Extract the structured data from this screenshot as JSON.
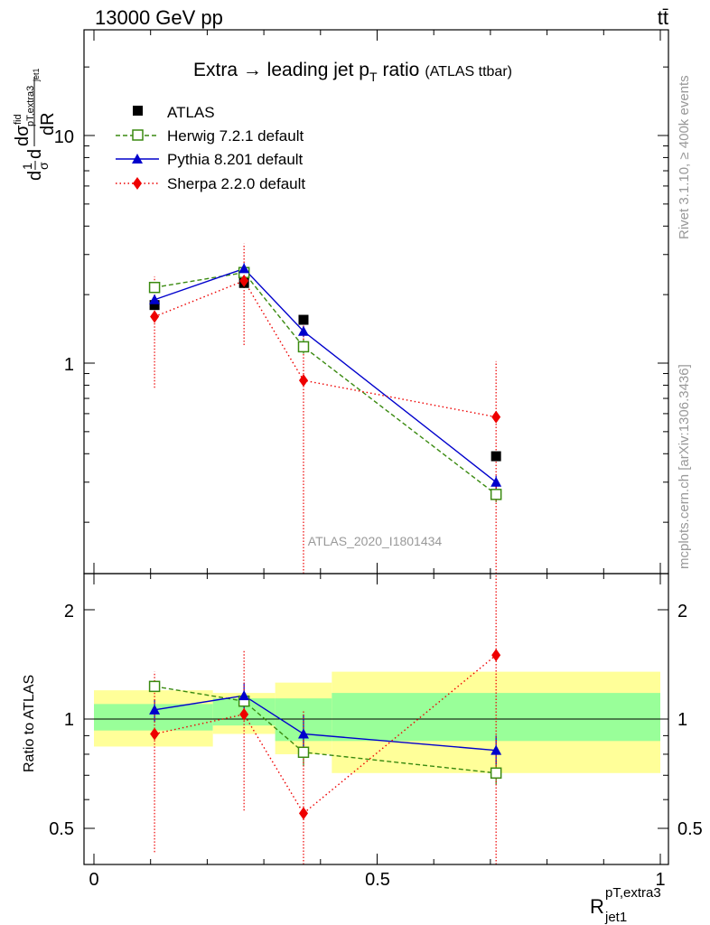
{
  "header": {
    "left": "13000 GeV pp",
    "right": "tt̄"
  },
  "chart_data": {
    "type": "scatter",
    "title": "Extra → leading jet p",
    "title_sub": "T",
    "title_tail": "ratio",
    "title_small": "(ATLAS ttbar)",
    "analysis_label": "ATLAS_2020_I1801434",
    "side_label_top": "Rivet 3.1.10, ≥ 400k events",
    "side_label_bottom": "mcplots.cern.ch [arXiv:1306.3436]",
    "ylabel_main": "dσ/dR (normalised)",
    "ylabel_ratio": "Ratio to ATLAS",
    "xlabel_main": "R",
    "xlabel_sup": "pT,extra3",
    "xlabel_sub": "jet1",
    "main_yscale": "log",
    "main_ylim": [
      0.18,
      30
    ],
    "ratio_ylim": [
      0.4,
      2.5
    ],
    "xlim": [
      -0.02,
      1.02
    ],
    "x_ticks": [
      0,
      0.5,
      1
    ],
    "x_tick_labels": [
      "0",
      "0.5",
      "1"
    ],
    "main_y_tick_labels": [
      "1",
      "10"
    ],
    "ratio_y_tick_labels": [
      "0.5",
      "1",
      "2"
    ],
    "x": [
      0.107,
      0.265,
      0.37,
      0.71
    ],
    "bins": [
      [
        0,
        0.21
      ],
      [
        0.21,
        0.32
      ],
      [
        0.32,
        0.42
      ],
      [
        0.42,
        1.0
      ]
    ],
    "series": [
      {
        "name": "ATLAS",
        "color": "#000000",
        "marker": "square-filled",
        "line": "none",
        "values": [
          1.8,
          2.25,
          1.55,
          0.39
        ]
      },
      {
        "name": "Herwig 7.2.1 default",
        "color": "#3a8a10",
        "marker": "square-open",
        "line": "dashed",
        "values": [
          2.15,
          2.5,
          1.18,
          0.265
        ],
        "err_lo": [
          2.05,
          2.35,
          1.1,
          0.245
        ],
        "err_hi": [
          2.25,
          2.65,
          1.28,
          0.29
        ],
        "ratio": [
          1.23,
          1.12,
          0.81,
          0.71
        ],
        "ratio_err": [
          [
            1.19,
            1.27
          ],
          [
            1.06,
            1.18
          ],
          [
            0.74,
            0.88
          ],
          [
            0.66,
            0.77
          ]
        ]
      },
      {
        "name": "Pythia 8.201 default",
        "color": "#0000cc",
        "marker": "triangle-filled",
        "line": "solid",
        "values": [
          1.9,
          2.6,
          1.38,
          0.3
        ],
        "err_lo": [
          1.8,
          2.45,
          1.3,
          0.28
        ],
        "err_hi": [
          2.0,
          2.75,
          1.46,
          0.32
        ],
        "ratio": [
          1.06,
          1.16,
          0.91,
          0.82
        ],
        "ratio_err": [
          [
            0.98,
            1.13
          ],
          [
            1.07,
            1.26
          ],
          [
            0.79,
            1.03
          ],
          [
            0.75,
            0.9
          ]
        ]
      },
      {
        "name": "Sherpa 2.2.0 default",
        "color": "#ee0000",
        "marker": "diamond-filled",
        "line": "dotted",
        "values": [
          1.6,
          2.3,
          0.84,
          0.58
        ],
        "err_lo": [
          0.78,
          1.2,
          0.1,
          0.1
        ],
        "err_hi": [
          2.4,
          3.35,
          1.6,
          1.02
        ],
        "ratio": [
          0.91,
          1.03,
          0.55,
          1.5
        ],
        "ratio_err": [
          [
            0.43,
            1.35
          ],
          [
            0.56,
            1.55
          ],
          [
            0.3,
            1.05
          ],
          [
            0.3,
            3.0
          ]
        ]
      }
    ],
    "ratio_bands": {
      "stat": [
        [
          0.93,
          1.1
        ],
        [
          0.96,
          1.14
        ],
        [
          0.87,
          1.14
        ],
        [
          0.87,
          1.18
        ]
      ],
      "total": [
        [
          0.84,
          1.2
        ],
        [
          0.91,
          1.18
        ],
        [
          0.8,
          1.26
        ],
        [
          0.71,
          1.35
        ]
      ],
      "stat_color": "#99ff99",
      "total_color": "#ffff99"
    }
  }
}
